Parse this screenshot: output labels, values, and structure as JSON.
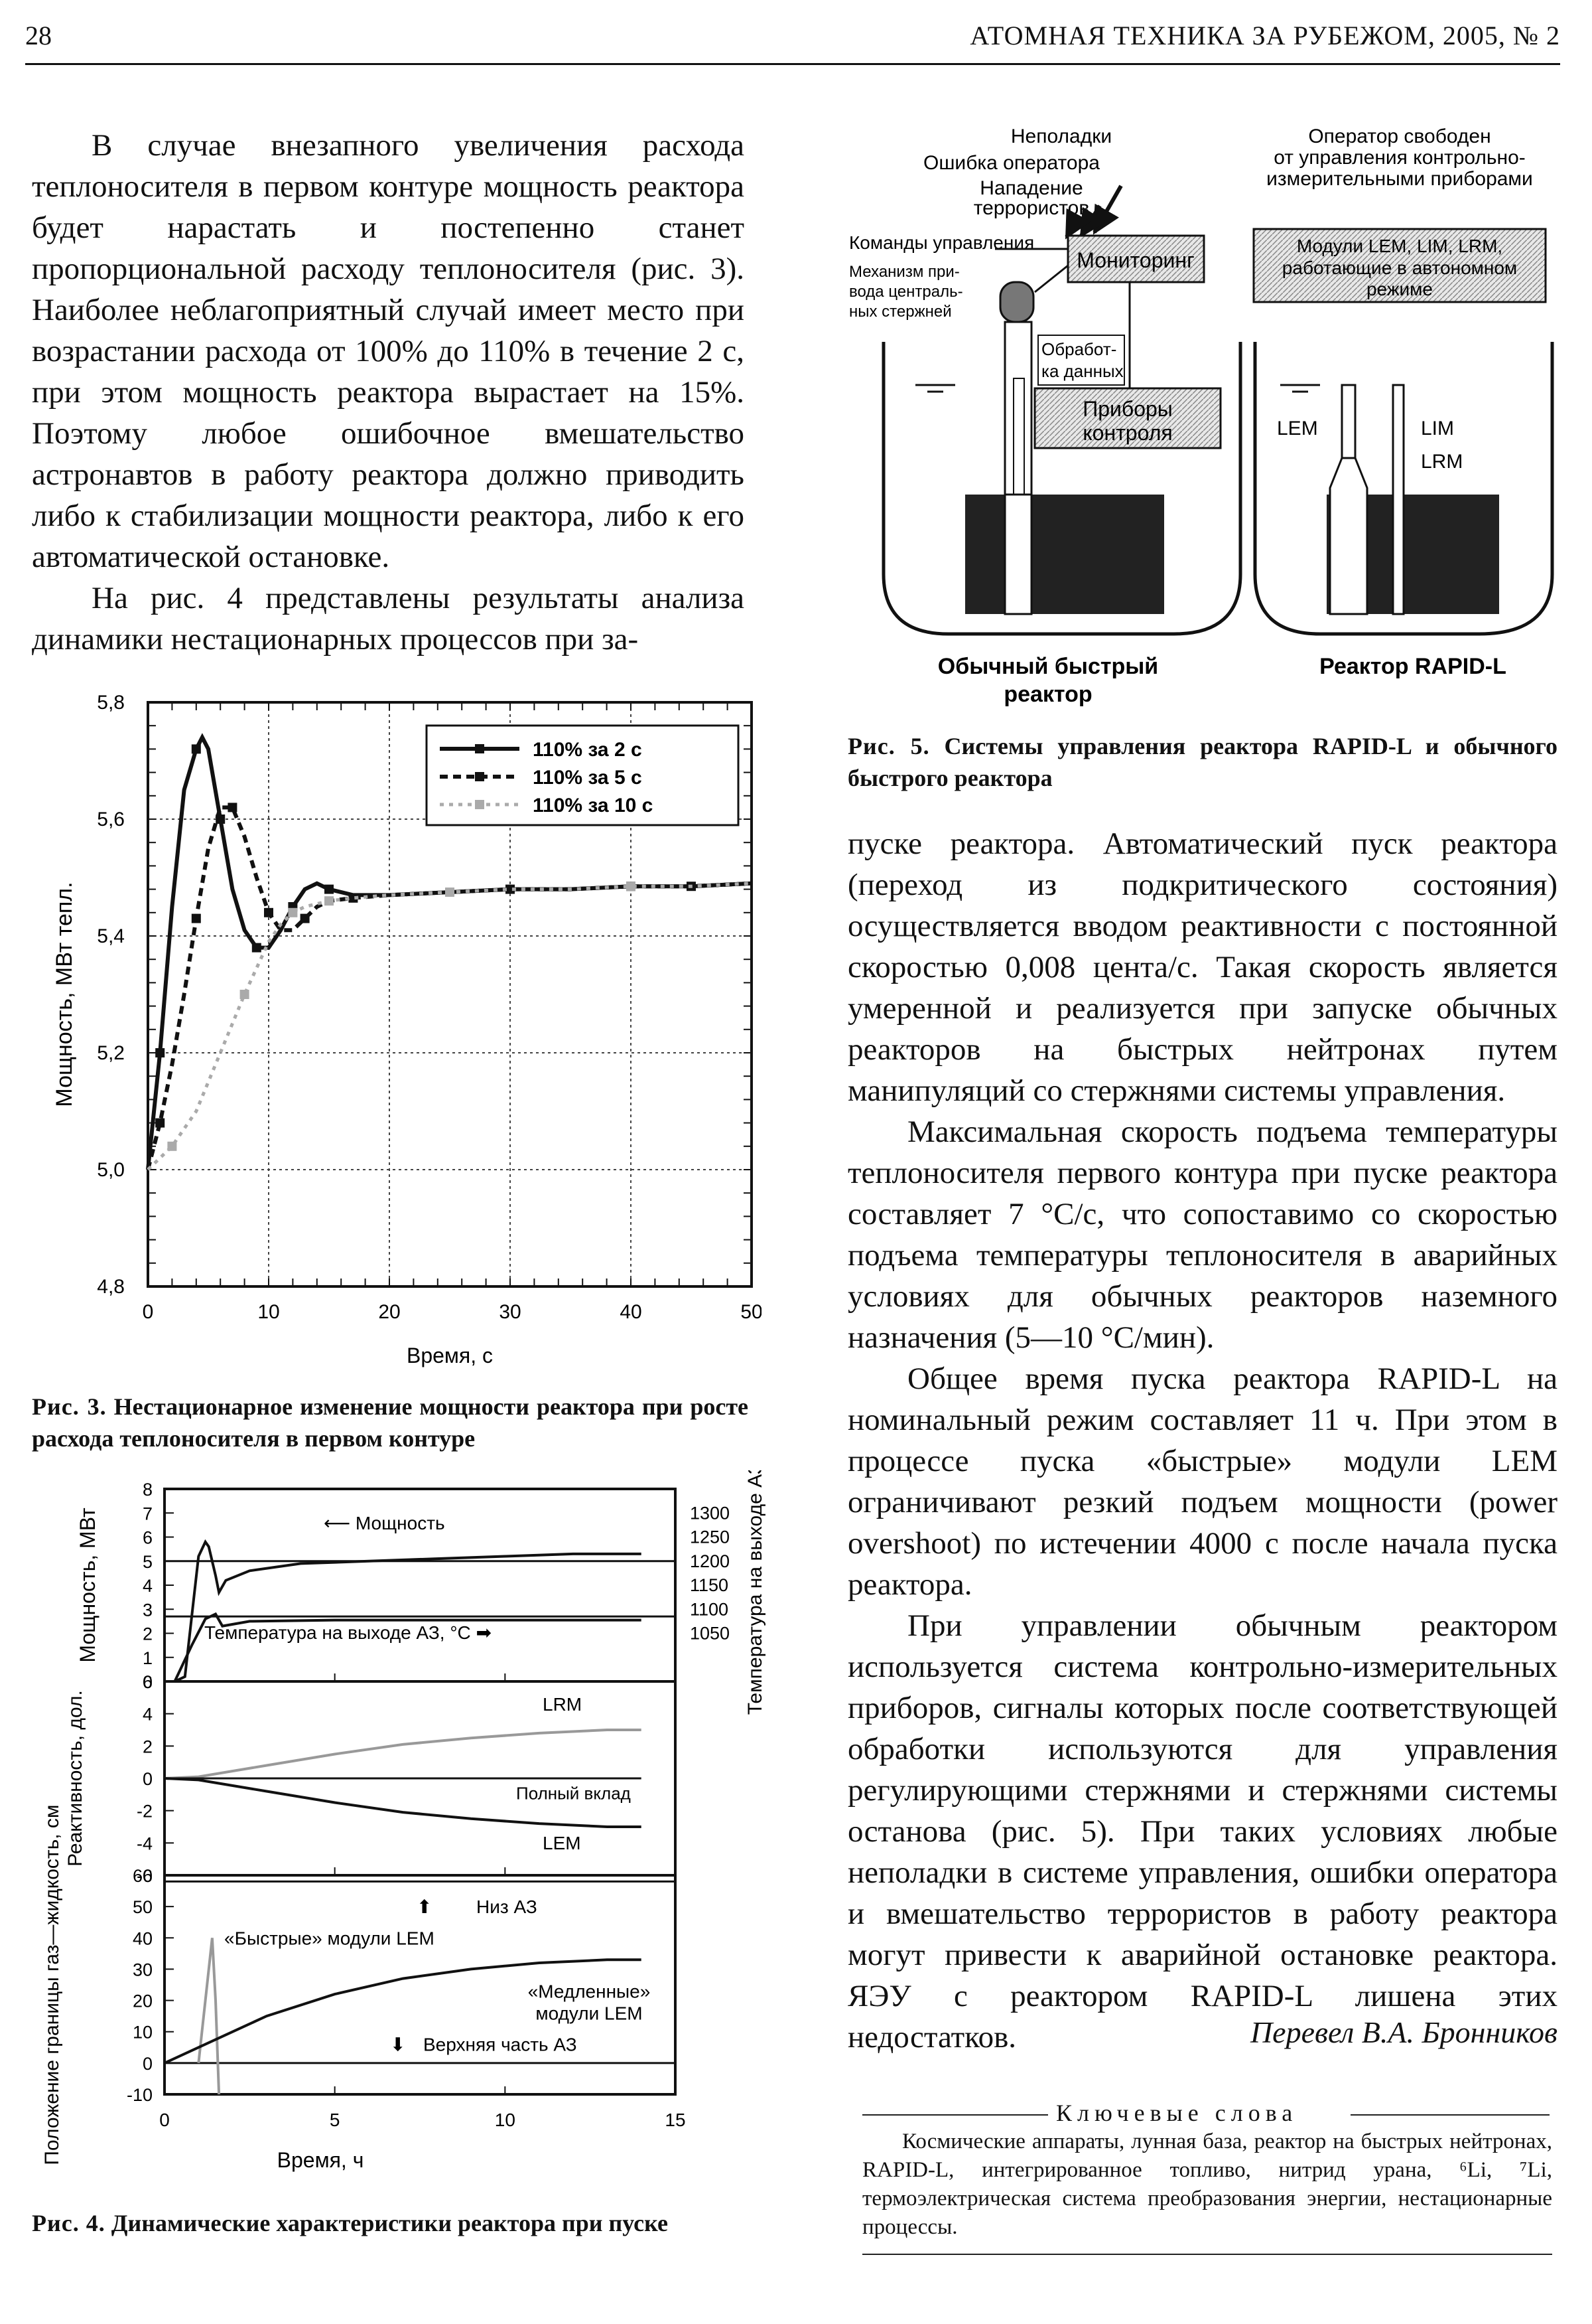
{
  "header": {
    "page_number": "28",
    "journal": "АТОМНАЯ ТЕХНИКА ЗА РУБЕЖОМ, 2005, № 2"
  },
  "left_column": {
    "para1": "В случае внезапного увеличения расхода теплоносителя в первом контуре мощность реактора будет нарастать и постепенно станет пропорциональной расходу теплоносителя (рис. 3). Наиболее неблагоприятный случай имеет место при возрастании расхода от 100% до 110% в течение 2 с, при этом мощность реактора вырастает на 15%. Поэтому любое ошибочное вмешательство астронавтов в работу реактора должно приводить либо к стабилизации мощности реактора, либо к его автоматической остановке.",
    "para2": "На рис. 4 представлены результаты анализа динамики нестационарных процессов при за-"
  },
  "right_column": {
    "para1": "пуске реактора. Автоматический пуск реактора (переход из подкритического состояния) осуществляется вводом реактивности с постоянной скоростью 0,008 цента/с. Такая скорость является умеренной и реализуется при запуске обычных реакторов на быстрых нейтронах путем манипуляций со стержнями системы управления.",
    "para2": "Максимальная скорость подъема температуры теплоносителя первого контура при пуске реактора составляет 7 °С/с, что сопоставимо со скоростью подъема температуры теплоносителя в аварийных условиях для обычных реакторов наземного назначения (5—10 °С/мин).",
    "para3": "Общее время пуска реактора RAPID-L на номинальный режим составляет 11 ч. При этом в процессе пуска «быстрые» модули LEM ограничивают резкий подъем мощности (power overshoot) по истечении 4000 с после начала пуска реактора.",
    "para4": "При управлении обычным реактором используется система контрольно-измерительных приборов, сигналы которых после соответствующей обработки используются для управления регулирующими стержнями и стержнями системы останова (рис. 5). При таких условиях любые неполадки в системе управления, ошибки оператора и вмешательство террористов в работу реактора могут привести к аварийной остановке реактора. ЯЭУ с реактором RAPID-L лишена этих недостатков.",
    "translator": "Перевел В.А. Бронников"
  },
  "keywords": {
    "title": "Ключевые слова",
    "text": "Космические аппараты, лунная база, реактор на быстрых нейтронах, RAPID-L, интегрированное топливо, нитрид урана, ⁶Li, ⁷Li, термоэлектрическая система преобразования энергии, нестационарные процессы."
  },
  "fig3": {
    "caption_label": "Рис. 3.",
    "caption": "Нестационарное изменение мощности реактора при росте расхода теплоносителя в первом контуре",
    "xlabel": "Время, с",
    "ylabel": "Мощность, МВт тепл.",
    "legend": [
      "110% за 2 с",
      "110% за 5 с",
      "110% за 10 с"
    ]
  },
  "fig4": {
    "caption_label": "Рис. 4.",
    "caption": "Динамические характеристики реактора при пуске",
    "xlabel": "Время, ч",
    "ylabel_top": "Мощность, МВт",
    "ylabel_right": "Температура на выходе АЗ, °С",
    "ylabel_mid": "Реактивность, дол.",
    "ylabel_bottom": "Положение границы газ—жидкость, см",
    "ann_power": "Мощность",
    "ann_temp": "Температура на выходе АЗ, °С",
    "ann_lrm": "LRM",
    "ann_total": "Полный вклад",
    "ann_lem": "LEM",
    "ann_bottom_core": "Низ АЗ",
    "ann_fast": "«Быстрые» модули LEM",
    "ann_slow1": "«Медленные»",
    "ann_slow2": "модули LEM",
    "ann_top_core": "Верхняя часть АЗ"
  },
  "fig5": {
    "caption_label": "Рис. 5.",
    "caption": "Системы управления реактора RAPID-L и обычного быстрого реактора",
    "l_fault": "Неполадки",
    "l_operr": "Ошибка оператора",
    "l_attack1": "Нападение",
    "l_attack2": "террористов",
    "l_cmd": "Команды управления",
    "l_mech1": "Механизм при-",
    "l_mech2": "вода централь-",
    "l_mech3": "ных стержней",
    "l_monitor": "Мониторинг",
    "l_proc1": "Обработ-",
    "l_proc2": "ка данных",
    "l_instr1": "Приборы",
    "l_instr2": "контроля",
    "r_free1": "Оператор свободен",
    "r_free2": "от управления контрольно-",
    "r_free3": "измерительными приборами",
    "r_mod1": "Модули LEM, LIM, LRM,",
    "r_mod2": "работающие в автономном",
    "r_mod3": "режиме",
    "r_lem": "LEM",
    "r_lim": "LIM",
    "r_lrm": "LRM",
    "l_title1": "Обычный быстрый",
    "l_title2": "реактор",
    "r_title": "Реактор RAPID-L"
  },
  "chart_data": [
    {
      "type": "line",
      "title": "",
      "xlabel": "Время, с",
      "ylabel": "Мощность, МВт тепл.",
      "xlim": [
        0,
        50
      ],
      "ylim": [
        4.8,
        5.8
      ],
      "xticks": [
        0,
        10,
        20,
        30,
        40,
        50
      ],
      "yticks": [
        "4,8",
        "5,0",
        "5,2",
        "5,4",
        "5,6",
        "5,8"
      ],
      "grid": true,
      "legend_position": "top-right",
      "series": [
        {
          "name": "110% за 2 с",
          "style": "solid",
          "x": [
            0,
            1,
            2,
            3,
            4,
            4.5,
            5,
            6,
            7,
            8,
            9,
            10,
            11,
            12,
            13,
            14,
            15,
            17,
            20,
            25,
            30,
            35,
            40,
            45,
            50
          ],
          "y": [
            5.0,
            5.2,
            5.45,
            5.65,
            5.72,
            5.74,
            5.72,
            5.6,
            5.48,
            5.41,
            5.38,
            5.38,
            5.41,
            5.45,
            5.48,
            5.49,
            5.48,
            5.47,
            5.47,
            5.475,
            5.48,
            5.48,
            5.485,
            5.485,
            5.49
          ]
        },
        {
          "name": "110% за 5 с",
          "style": "dashed",
          "x": [
            0,
            1,
            2,
            3,
            4,
            5,
            6,
            7,
            8,
            9,
            10,
            11,
            12,
            13,
            14,
            15,
            17,
            20,
            25,
            30,
            35,
            40,
            45,
            50
          ],
          "y": [
            5.0,
            5.08,
            5.18,
            5.3,
            5.43,
            5.55,
            5.62,
            5.62,
            5.57,
            5.5,
            5.44,
            5.41,
            5.41,
            5.43,
            5.45,
            5.46,
            5.465,
            5.47,
            5.475,
            5.48,
            5.48,
            5.485,
            5.485,
            5.49
          ]
        },
        {
          "name": "110% за 10 с",
          "style": "dotted",
          "x": [
            0,
            2,
            4,
            6,
            8,
            10,
            11,
            12,
            13,
            14,
            15,
            17,
            20,
            25,
            30,
            35,
            40,
            45,
            50
          ],
          "y": [
            5.0,
            5.04,
            5.1,
            5.2,
            5.3,
            5.39,
            5.42,
            5.44,
            5.45,
            5.455,
            5.46,
            5.465,
            5.47,
            5.475,
            5.48,
            5.48,
            5.485,
            5.485,
            5.49
          ]
        }
      ]
    },
    {
      "type": "line",
      "title": "",
      "xlabel": "Время, ч",
      "xlim": [
        0,
        15
      ],
      "xticks": [
        0,
        5,
        10,
        15
      ],
      "panels": [
        {
          "name": "power_temperature",
          "ylabel": "Мощность, МВт",
          "ylim": [
            0,
            8
          ],
          "yticks": [
            0,
            1,
            2,
            3,
            4,
            5,
            6,
            7,
            8
          ],
          "y2label": "Температура на выходе АЗ, °С",
          "y2ticks": [
            1050,
            1100,
            1150,
            1200,
            1250,
            1300
          ],
          "series": [
            {
              "name": "Мощность",
              "x": [
                0,
                0.3,
                0.6,
                1.0,
                1.2,
                1.3,
                1.5,
                1.6,
                1.8,
                2.5,
                4,
                6,
                8,
                10,
                12,
                14
              ],
              "y": [
                0,
                0,
                0.2,
                5.2,
                5.8,
                5.6,
                4.4,
                3.7,
                4.2,
                4.6,
                4.9,
                5.0,
                5.1,
                5.2,
                5.3,
                5.3
              ]
            },
            {
              "name": "Температура на выходе АЗ",
              "x": [
                0,
                0.3,
                0.8,
                1.2,
                1.5,
                1.7,
                2.5,
                5,
                10,
                14
              ],
              "y": [
                0,
                0,
                1.5,
                2.6,
                2.8,
                2.3,
                2.5,
                2.55,
                2.55,
                2.55
              ]
            }
          ]
        },
        {
          "name": "reactivity",
          "ylabel": "Реактивность, дол.",
          "ylim": [
            -6,
            6
          ],
          "yticks": [
            -6,
            -4,
            -2,
            0,
            2,
            4,
            6
          ],
          "series": [
            {
              "name": "LRM",
              "x": [
                0,
                1,
                3,
                5,
                7,
                9,
                11,
                13,
                14
              ],
              "y": [
                0,
                0.1,
                0.8,
                1.5,
                2.1,
                2.5,
                2.8,
                3.0,
                3.0
              ]
            },
            {
              "name": "Полный вклад",
              "x": [
                0,
                14
              ],
              "y": [
                0,
                0
              ]
            },
            {
              "name": "LEM",
              "x": [
                0,
                1,
                3,
                5,
                7,
                9,
                11,
                13,
                14
              ],
              "y": [
                0,
                -0.1,
                -0.8,
                -1.5,
                -2.1,
                -2.5,
                -2.8,
                -3.0,
                -3.0
              ]
            }
          ]
        },
        {
          "name": "gas_liquid_level",
          "ylabel": "Положение границы газ—жидкость, см",
          "ylim": [
            -10,
            60
          ],
          "yticks": [
            -10,
            0,
            10,
            20,
            30,
            40,
            50,
            60
          ],
          "series": [
            {
              "name": "Низ АЗ",
              "x": [
                0,
                15
              ],
              "y": [
                58,
                58
              ]
            },
            {
              "name": "Верхняя часть АЗ",
              "x": [
                0,
                15
              ],
              "y": [
                0,
                0
              ]
            },
            {
              "name": "«Быстрые» модули LEM",
              "x": [
                1.0,
                1.2,
                1.4,
                1.5,
                1.6
              ],
              "y": [
                0,
                20,
                40,
                20,
                -10
              ]
            },
            {
              "name": "«Медленные» модули LEM",
              "x": [
                0,
                1,
                3,
                5,
                7,
                9,
                11,
                13,
                14
              ],
              "y": [
                0,
                5,
                15,
                22,
                27,
                30,
                32,
                33,
                33
              ]
            }
          ]
        }
      ]
    }
  ]
}
